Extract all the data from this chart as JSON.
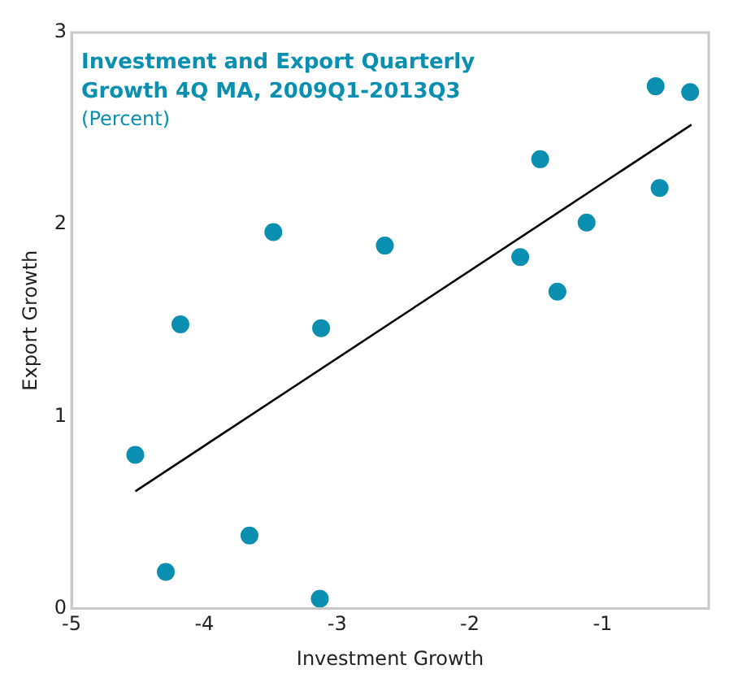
{
  "chart_data": {
    "type": "scatter",
    "title": "Investment and Export Quarterly Growth 4Q MA, 2009Q1-2013Q3",
    "subtitle": "(Percent)",
    "xlabel": "Investment Growth",
    "ylabel": "Export Growth",
    "xlim": [
      -5,
      -0.2
    ],
    "xticks": [
      -5,
      -4,
      -3,
      -2,
      -1
    ],
    "ylim": [
      0,
      3
    ],
    "yticks": [
      0,
      1,
      2,
      3
    ],
    "grid": false,
    "legend": false,
    "marker": "circle",
    "series": [
      {
        "color": "#0a8fb0",
        "x": [
          -4.18,
          -3.48,
          -3.12,
          -2.64,
          -1.47,
          -1.62,
          -1.34,
          -1.12,
          -0.6,
          -0.34,
          -0.57,
          -4.52,
          -3.66,
          -4.29,
          -3.13
        ],
        "values": [
          1.48,
          1.96,
          1.46,
          1.89,
          2.34,
          1.83,
          1.65,
          2.01,
          2.72,
          2.69,
          2.19,
          0.8,
          0.38,
          0.19,
          0.05
        ]
      },
      {
        "type": "line",
        "color": "#000000",
        "x": [
          -4.52,
          -0.33
        ],
        "values": [
          0.61,
          2.52
        ],
        "marker": "none"
      }
    ]
  }
}
